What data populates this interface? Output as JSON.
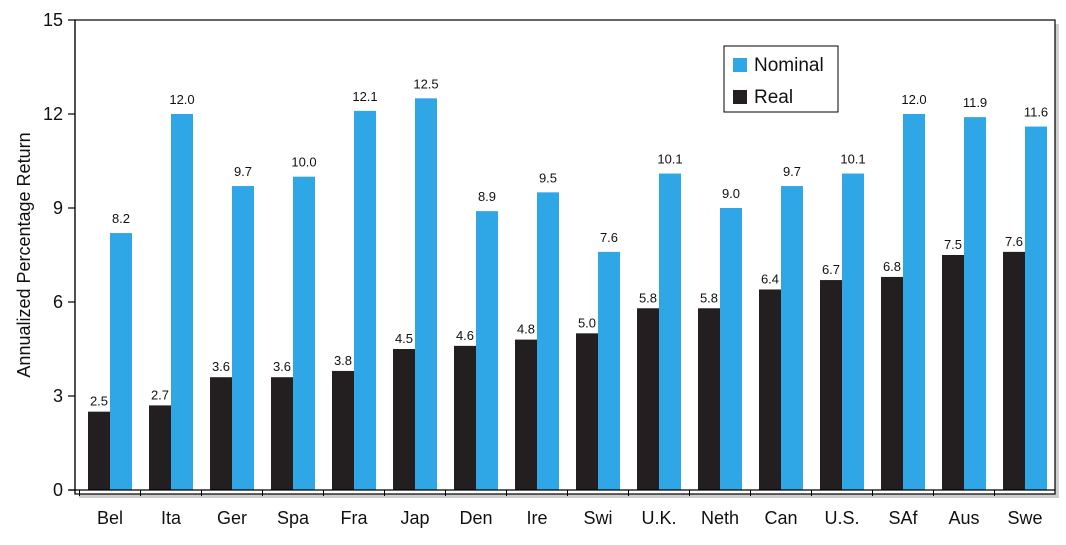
{
  "chart_data": {
    "type": "bar",
    "title": "",
    "xlabel": "",
    "ylabel": "Annualized Percentage Return",
    "ylim": [
      0,
      15
    ],
    "yticks": [
      0,
      3,
      6,
      9,
      12,
      15
    ],
    "grid": false,
    "legend_position": "top-right",
    "categories": [
      "Bel",
      "Ita",
      "Ger",
      "Spa",
      "Fra",
      "Jap",
      "Den",
      "Ire",
      "Swi",
      "U.K.",
      "Neth",
      "Can",
      "U.S.",
      "SAf",
      "Aus",
      "Swe"
    ],
    "series": [
      {
        "name": "Real",
        "color": "#231f20",
        "values": [
          2.5,
          2.7,
          3.6,
          3.6,
          3.8,
          4.5,
          4.6,
          4.8,
          5.0,
          5.8,
          5.8,
          6.4,
          6.7,
          6.8,
          7.5,
          7.6
        ],
        "labels": [
          "2.5",
          "2.7",
          "3.6",
          "3.6",
          "3.8",
          "4.5",
          "4.6",
          "4.8",
          "5.0",
          "5.8",
          "5.8",
          "6.4",
          "6.7",
          "6.8",
          "7.5",
          "7.6"
        ]
      },
      {
        "name": "Nominal",
        "color": "#2fa7e6",
        "values": [
          8.2,
          12.0,
          9.7,
          10.0,
          12.1,
          12.5,
          8.9,
          9.5,
          7.6,
          10.1,
          9.0,
          9.7,
          10.1,
          12.0,
          11.9,
          11.6
        ],
        "labels": [
          "8.2",
          "12.0",
          "9.7",
          "10.0",
          "12.1",
          "12.5",
          "8.9",
          "9.5",
          "7.6",
          "10.1",
          "9.0",
          "9.7",
          "10.1",
          "12.0",
          "11.9",
          "11.6"
        ]
      }
    ],
    "legend_order": [
      "Nominal",
      "Real"
    ]
  }
}
